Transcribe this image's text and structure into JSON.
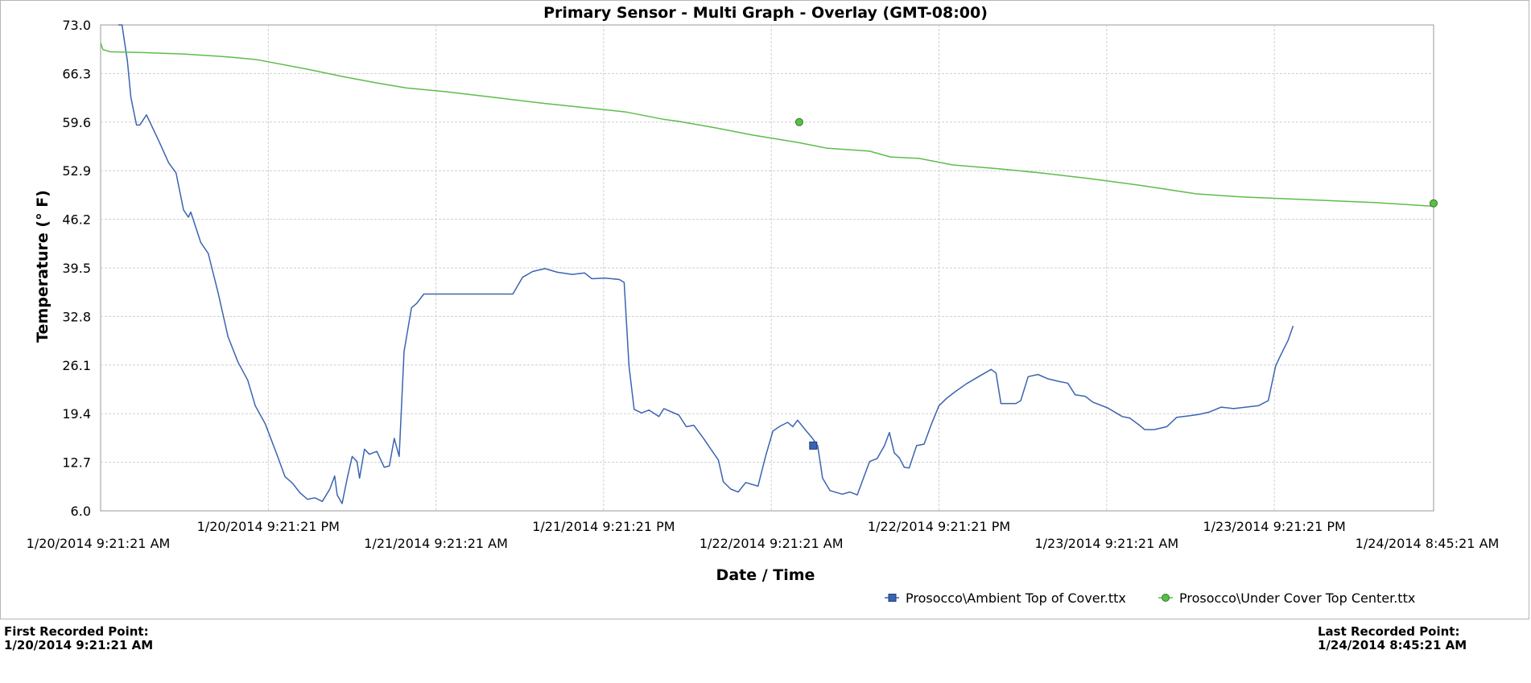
{
  "chart_data": {
    "type": "line",
    "title": "Primary Sensor - Multi Graph - Overlay  (GMT-08:00)",
    "xlabel": "Date / Time",
    "ylabel": "Temperature (° F)",
    "ylim": [
      6.0,
      73.0
    ],
    "xlim": [
      "1/20/2014 9:21:21 AM",
      "1/24/2014 8:45:21 AM"
    ],
    "yticks": [
      "73.0",
      "66.3",
      "59.6",
      "52.9",
      "46.2",
      "39.5",
      "32.8",
      "26.1",
      "19.4",
      "12.7",
      "6.0"
    ],
    "xticks": [
      {
        "t": "2014-01-20T09:21:21",
        "label": "1/20/2014 9:21:21 AM"
      },
      {
        "t": "2014-01-20T21:21:21",
        "label": "1/20/2014 9:21:21 PM"
      },
      {
        "t": "2014-01-21T09:21:21",
        "label": "1/21/2014 9:21:21 AM"
      },
      {
        "t": "2014-01-21T21:21:21",
        "label": "1/21/2014 9:21:21 PM"
      },
      {
        "t": "2014-01-22T09:21:21",
        "label": "1/22/2014 9:21:21 AM"
      },
      {
        "t": "2014-01-22T21:21:21",
        "label": "1/22/2014 9:21:21 PM"
      },
      {
        "t": "2014-01-23T09:21:21",
        "label": "1/23/2014 9:21:21 AM"
      },
      {
        "t": "2014-01-23T21:21:21",
        "label": "1/23/2014 9:21:21 PM"
      },
      {
        "t": "2014-01-24T08:45:21",
        "label": "1/24/2014 8:45:21 AM"
      }
    ],
    "grid": true,
    "legend_position": "bottom-right",
    "series": [
      {
        "name": "Prosocco\\Ambient Top of Cover.ttx",
        "color": "#3a64b0",
        "marker": "square",
        "marker_at": [
          "2014-01-22T12:21:21",
          15.0
        ],
        "points": [
          [
            "2014-01-20T10:37:21",
            73.0
          ],
          [
            "2014-01-20T10:53:21",
            73.0
          ],
          [
            "2014-01-20T11:16:21",
            68.0
          ],
          [
            "2014-01-20T11:31:21",
            63.0
          ],
          [
            "2014-01-20T11:55:21",
            59.2
          ],
          [
            "2014-01-20T12:09:21",
            59.2
          ],
          [
            "2014-01-20T12:38:21",
            60.6
          ],
          [
            "2014-01-20T13:31:21",
            57.0
          ],
          [
            "2014-01-20T14:13:21",
            54.0
          ],
          [
            "2014-01-20T14:45:21",
            52.6
          ],
          [
            "2014-01-20T15:17:21",
            47.5
          ],
          [
            "2014-01-20T15:38:21",
            46.5
          ],
          [
            "2014-01-20T15:48:21",
            47.2
          ],
          [
            "2014-01-20T16:31:21",
            43.0
          ],
          [
            "2014-01-20T17:03:21",
            41.5
          ],
          [
            "2014-01-20T17:46:21",
            36.0
          ],
          [
            "2014-01-20T18:28:21",
            30.0
          ],
          [
            "2014-01-20T19:11:21",
            26.5
          ],
          [
            "2014-01-20T19:53:21",
            24.0
          ],
          [
            "2014-01-20T20:25:21",
            20.5
          ],
          [
            "2014-01-20T21:08:21",
            18.0
          ],
          [
            "2014-01-20T22:01:21",
            13.5
          ],
          [
            "2014-01-20T22:33:21",
            10.7
          ],
          [
            "2014-01-20T23:05:21",
            9.8
          ],
          [
            "2014-01-20T23:37:21",
            8.5
          ],
          [
            "2014-01-21T00:09:21",
            7.6
          ],
          [
            "2014-01-21T00:41:21",
            7.8
          ],
          [
            "2014-01-21T01:13:21",
            7.3
          ],
          [
            "2014-01-21T01:45:21",
            9.0
          ],
          [
            "2014-01-21T02:06:21",
            10.8
          ],
          [
            "2014-01-21T02:17:21",
            8.2
          ],
          [
            "2014-01-21T02:38:21",
            7.0
          ],
          [
            "2014-01-21T03:00:21",
            10.5
          ],
          [
            "2014-01-21T03:21:21",
            13.5
          ],
          [
            "2014-01-21T03:42:21",
            12.8
          ],
          [
            "2014-01-21T03:53:21",
            10.5
          ],
          [
            "2014-01-21T04:14:21",
            14.5
          ],
          [
            "2014-01-21T04:35:21",
            13.8
          ],
          [
            "2014-01-21T05:07:21",
            14.2
          ],
          [
            "2014-01-21T05:39:21",
            12.0
          ],
          [
            "2014-01-21T06:01:21",
            12.2
          ],
          [
            "2014-01-21T06:22:21",
            16.0
          ],
          [
            "2014-01-21T06:43:21",
            13.5
          ],
          [
            "2014-01-21T07:04:21",
            28.0
          ],
          [
            "2014-01-21T07:36:21",
            34.0
          ],
          [
            "2014-01-21T07:58:21",
            34.6
          ],
          [
            "2014-01-21T08:29:21",
            35.9
          ],
          [
            "2014-01-21T14:51:21",
            35.9
          ],
          [
            "2014-01-21T15:33:21",
            38.2
          ],
          [
            "2014-01-21T16:16:21",
            39.0
          ],
          [
            "2014-01-21T17:09:21",
            39.4
          ],
          [
            "2014-01-21T18:02:21",
            38.9
          ],
          [
            "2014-01-21T19:06:21",
            38.6
          ],
          [
            "2014-01-21T19:59:21",
            38.8
          ],
          [
            "2014-01-21T20:31:21",
            38.0
          ],
          [
            "2014-01-21T21:24:21",
            38.1
          ],
          [
            "2014-01-21T22:28:21",
            37.9
          ],
          [
            "2014-01-21T22:49:21",
            37.5
          ],
          [
            "2014-01-21T23:10:21",
            26.0
          ],
          [
            "2014-01-21T23:32:21",
            20.0
          ],
          [
            "2014-01-22T00:04:21",
            19.5
          ],
          [
            "2014-01-22T00:36:21",
            19.9
          ],
          [
            "2014-01-22T01:18:21",
            19.0
          ],
          [
            "2014-01-22T01:40:21",
            20.1
          ],
          [
            "2014-01-22T02:44:21",
            19.2
          ],
          [
            "2014-01-22T03:16:21",
            17.6
          ],
          [
            "2014-01-22T03:48:21",
            17.8
          ],
          [
            "2014-01-22T04:30:21",
            16.0
          ],
          [
            "2014-01-22T04:51:21",
            15.0
          ],
          [
            "2014-01-22T05:34:21",
            13.0
          ],
          [
            "2014-01-22T05:55:21",
            10.0
          ],
          [
            "2014-01-22T06:27:21",
            9.0
          ],
          [
            "2014-01-22T06:59:21",
            8.6
          ],
          [
            "2014-01-22T07:31:21",
            9.9
          ],
          [
            "2014-01-22T08:03:21",
            9.6
          ],
          [
            "2014-01-22T08:24:21",
            9.4
          ],
          [
            "2014-01-22T08:56:21",
            13.5
          ],
          [
            "2014-01-22T09:28:21",
            17.0
          ],
          [
            "2014-01-22T10:00:21",
            17.7
          ],
          [
            "2014-01-22T10:32:21",
            18.2
          ],
          [
            "2014-01-22T10:53:21",
            17.6
          ],
          [
            "2014-01-22T11:14:21",
            18.5
          ],
          [
            "2014-01-22T11:46:21",
            17.2
          ],
          [
            "2014-01-22T12:18:21",
            16.0
          ],
          [
            "2014-01-22T12:40:21",
            15.0
          ],
          [
            "2014-01-22T13:01:21",
            10.5
          ],
          [
            "2014-01-22T13:33:21",
            8.8
          ],
          [
            "2014-01-22T14:26:21",
            8.3
          ],
          [
            "2014-01-22T14:58:21",
            8.6
          ],
          [
            "2014-01-22T15:30:21",
            8.2
          ],
          [
            "2014-01-22T15:51:21",
            10.0
          ],
          [
            "2014-01-22T16:23:21",
            12.8
          ],
          [
            "2014-01-22T16:55:21",
            13.2
          ],
          [
            "2014-01-22T17:27:21",
            15.0
          ],
          [
            "2014-01-22T17:48:21",
            16.8
          ],
          [
            "2014-01-22T18:09:21",
            14.0
          ],
          [
            "2014-01-22T18:31:21",
            13.3
          ],
          [
            "2014-01-22T18:52:21",
            12.0
          ],
          [
            "2014-01-22T19:13:21",
            11.9
          ],
          [
            "2014-01-22T19:45:21",
            15.0
          ],
          [
            "2014-01-22T20:17:21",
            15.2
          ],
          [
            "2014-01-22T20:49:21",
            18.0
          ],
          [
            "2014-01-22T21:21:21",
            20.5
          ],
          [
            "2014-01-22T21:53:21",
            21.5
          ],
          [
            "2014-01-22T22:25:21",
            22.3
          ],
          [
            "2014-01-22T23:18:21",
            23.5
          ],
          [
            "2014-01-23T00:11:21",
            24.5
          ],
          [
            "2014-01-23T01:05:21",
            25.5
          ],
          [
            "2014-01-23T01:26:21",
            25.0
          ],
          [
            "2014-01-23T01:47:21",
            20.8
          ],
          [
            "2014-01-23T02:51:21",
            20.8
          ],
          [
            "2014-01-23T03:12:21",
            21.2
          ],
          [
            "2014-01-23T03:44:21",
            24.5
          ],
          [
            "2014-01-23T04:26:21",
            24.8
          ],
          [
            "2014-01-23T05:09:21",
            24.2
          ],
          [
            "2014-01-23T06:02:21",
            23.8
          ],
          [
            "2014-01-23T06:34:21",
            23.6
          ],
          [
            "2014-01-23T07:06:21",
            22.0
          ],
          [
            "2014-01-23T07:49:21",
            21.8
          ],
          [
            "2014-01-23T08:21:21",
            21.0
          ],
          [
            "2014-01-23T09:25:21",
            20.2
          ],
          [
            "2014-01-23T10:28:21",
            19.0
          ],
          [
            "2014-01-23T11:00:21",
            18.8
          ],
          [
            "2014-01-23T11:42:21",
            17.8
          ],
          [
            "2014-01-23T12:04:21",
            17.2
          ],
          [
            "2014-01-23T12:46:21",
            17.2
          ],
          [
            "2014-01-23T13:39:21",
            17.6
          ],
          [
            "2014-01-23T14:22:21",
            18.9
          ],
          [
            "2014-01-23T15:15:21",
            19.1
          ],
          [
            "2014-01-23T15:57:21",
            19.3
          ],
          [
            "2014-01-23T16:40:21",
            19.6
          ],
          [
            "2014-01-23T17:33:21",
            20.3
          ],
          [
            "2014-01-23T18:26:21",
            20.1
          ],
          [
            "2014-01-23T19:19:21",
            20.3
          ],
          [
            "2014-01-23T20:13:21",
            20.5
          ],
          [
            "2014-01-23T20:55:21",
            21.2
          ],
          [
            "2014-01-23T21:27:21",
            26.0
          ],
          [
            "2014-01-23T21:49:21",
            27.5
          ],
          [
            "2014-01-23T22:20:21",
            29.5
          ],
          [
            "2014-01-23T22:42:21",
            31.5
          ]
        ]
      },
      {
        "name": "Prosocco\\Under Cover Top Center.ttx",
        "color": "#5cbd4a",
        "marker": "circle",
        "marker_at": [
          [
            "2014-01-22T11:21:21",
            59.6
          ],
          [
            "2014-01-24T08:45:21",
            48.4
          ]
        ],
        "points": [
          [
            "2014-01-20T09:21:21",
            70.5
          ],
          [
            "2014-01-20T09:31:21",
            69.6
          ],
          [
            "2014-01-20T10:03:21",
            69.3
          ],
          [
            "2014-01-20T12:09:21",
            69.2
          ],
          [
            "2014-01-20T15:17:21",
            69.0
          ],
          [
            "2014-01-20T18:28:21",
            68.6
          ],
          [
            "2014-01-20T20:35:21",
            68.2
          ],
          [
            "2014-01-21T00:09:21",
            66.9
          ],
          [
            "2014-01-21T02:38:21",
            65.9
          ],
          [
            "2014-01-21T05:07:21",
            65.0
          ],
          [
            "2014-01-21T07:15:21",
            64.3
          ],
          [
            "2014-01-21T10:00:21",
            63.8
          ],
          [
            "2014-01-21T13:33:21",
            63.0
          ],
          [
            "2014-01-21T17:01:21",
            62.2
          ],
          [
            "2014-01-21T19:59:21",
            61.6
          ],
          [
            "2014-01-21T22:57:21",
            61.0
          ],
          [
            "2014-01-22T01:36:21",
            60.0
          ],
          [
            "2014-01-22T02:44:21",
            59.7
          ],
          [
            "2014-01-22T05:23:21",
            58.8
          ],
          [
            "2014-01-22T08:03:21",
            57.8
          ],
          [
            "2014-01-22T11:14:21",
            56.8
          ],
          [
            "2014-01-22T13:22:21",
            56.0
          ],
          [
            "2014-01-22T16:23:21",
            55.6
          ],
          [
            "2014-01-22T17:53:21",
            54.8
          ],
          [
            "2014-01-22T19:56:21",
            54.6
          ],
          [
            "2014-01-22T22:20:21",
            53.7
          ],
          [
            "2014-01-23T01:26:21",
            53.2
          ],
          [
            "2014-01-23T04:37:21",
            52.6
          ],
          [
            "2014-01-23T08:11:21",
            51.8
          ],
          [
            "2014-01-23T11:42:21",
            50.9
          ],
          [
            "2014-01-23T15:47:21",
            49.7
          ],
          [
            "2014-01-23T18:58:21",
            49.3
          ],
          [
            "2014-01-24T04:40:21",
            48.5
          ],
          [
            "2014-01-24T08:45:21",
            48.0
          ]
        ]
      }
    ]
  },
  "footer": {
    "first_label": "First Recorded Point:",
    "first_value": "1/20/2014 9:21:21 AM",
    "last_label": "Last Recorded Point:",
    "last_value": "1/24/2014 8:45:21 AM"
  }
}
